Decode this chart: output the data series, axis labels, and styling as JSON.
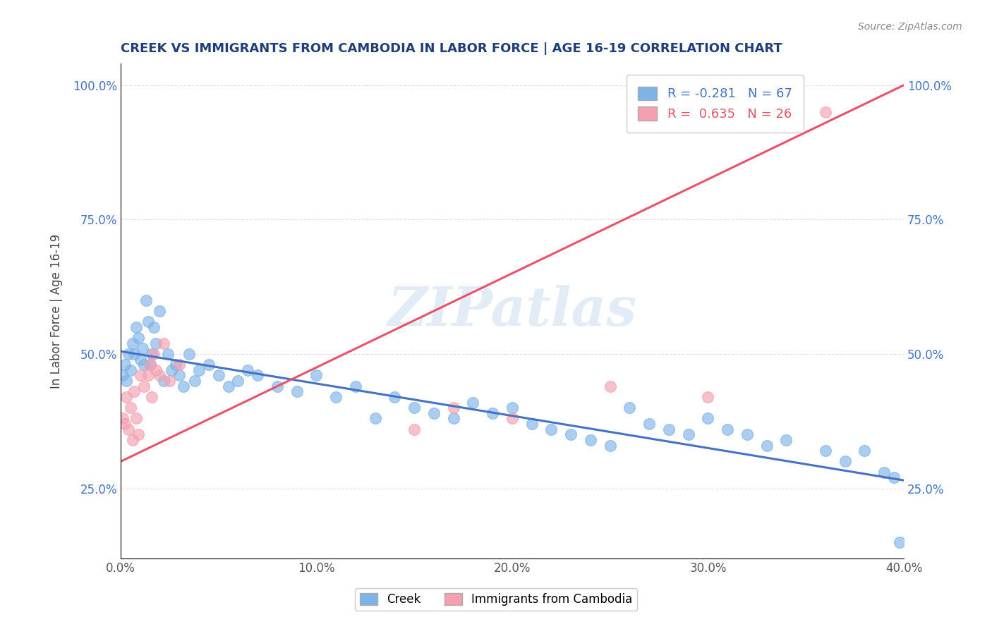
{
  "title": "CREEK VS IMMIGRANTS FROM CAMBODIA IN LABOR FORCE | AGE 16-19 CORRELATION CHART",
  "source": "Source: ZipAtlas.com",
  "ylabel": "In Labor Force | Age 16-19",
  "xlim": [
    0.0,
    0.4
  ],
  "ylim": [
    0.12,
    1.04
  ],
  "xticks": [
    0.0,
    0.05,
    0.1,
    0.15,
    0.2,
    0.25,
    0.3,
    0.35,
    0.4
  ],
  "xticklabels": [
    "0.0%",
    "",
    "10.0%",
    "",
    "20.0%",
    "",
    "30.0%",
    "",
    "40.0%"
  ],
  "yticks": [
    0.25,
    0.5,
    0.75,
    1.0
  ],
  "yticklabels": [
    "25.0%",
    "50.0%",
    "75.0%",
    "100.0%"
  ],
  "creek_color": "#7EB3E8",
  "cambodia_color": "#F4A0B0",
  "creek_trend_color": "#4472C4",
  "cambodia_trend_color": "#E8536A",
  "legend_creek_label": "Creek",
  "legend_cambodia_label": "Immigrants from Cambodia",
  "R_creek": -0.281,
  "N_creek": 67,
  "R_cambodia": 0.635,
  "N_cambodia": 26,
  "creek_x": [
    0.001,
    0.002,
    0.003,
    0.004,
    0.005,
    0.006,
    0.007,
    0.008,
    0.009,
    0.01,
    0.011,
    0.012,
    0.013,
    0.014,
    0.015,
    0.016,
    0.017,
    0.018,
    0.02,
    0.022,
    0.024,
    0.026,
    0.028,
    0.03,
    0.032,
    0.035,
    0.038,
    0.04,
    0.045,
    0.05,
    0.055,
    0.06,
    0.065,
    0.07,
    0.08,
    0.09,
    0.1,
    0.11,
    0.12,
    0.13,
    0.14,
    0.15,
    0.16,
    0.17,
    0.18,
    0.19,
    0.2,
    0.21,
    0.22,
    0.23,
    0.24,
    0.25,
    0.26,
    0.27,
    0.28,
    0.29,
    0.3,
    0.31,
    0.32,
    0.33,
    0.34,
    0.36,
    0.37,
    0.38,
    0.39,
    0.395,
    0.398
  ],
  "creek_y": [
    0.46,
    0.48,
    0.45,
    0.5,
    0.47,
    0.52,
    0.5,
    0.55,
    0.53,
    0.49,
    0.51,
    0.48,
    0.6,
    0.56,
    0.48,
    0.5,
    0.55,
    0.52,
    0.58,
    0.45,
    0.5,
    0.47,
    0.48,
    0.46,
    0.44,
    0.5,
    0.45,
    0.47,
    0.48,
    0.46,
    0.44,
    0.45,
    0.47,
    0.46,
    0.44,
    0.43,
    0.46,
    0.42,
    0.44,
    0.38,
    0.42,
    0.4,
    0.39,
    0.38,
    0.41,
    0.39,
    0.4,
    0.37,
    0.36,
    0.35,
    0.34,
    0.33,
    0.4,
    0.37,
    0.36,
    0.35,
    0.38,
    0.36,
    0.35,
    0.33,
    0.34,
    0.32,
    0.3,
    0.32,
    0.28,
    0.27,
    0.15
  ],
  "cambodia_x": [
    0.001,
    0.002,
    0.003,
    0.004,
    0.005,
    0.006,
    0.007,
    0.008,
    0.009,
    0.01,
    0.012,
    0.014,
    0.015,
    0.016,
    0.017,
    0.018,
    0.02,
    0.022,
    0.025,
    0.03,
    0.15,
    0.17,
    0.2,
    0.25,
    0.3,
    0.36
  ],
  "cambodia_y": [
    0.38,
    0.37,
    0.42,
    0.36,
    0.4,
    0.34,
    0.43,
    0.38,
    0.35,
    0.46,
    0.44,
    0.46,
    0.48,
    0.42,
    0.5,
    0.47,
    0.46,
    0.52,
    0.45,
    0.48,
    0.36,
    0.4,
    0.38,
    0.44,
    0.42,
    0.95
  ],
  "creek_trend_x": [
    0.0,
    0.4
  ],
  "creek_trend_y": [
    0.505,
    0.265
  ],
  "cambodia_trend_x": [
    0.0,
    0.4
  ],
  "cambodia_trend_y": [
    0.3,
    1.0
  ],
  "watermark_text": "ZIPatlas",
  "background_color": "#FFFFFF",
  "grid_color": "#DDDDDD",
  "title_color": "#1F3E7A",
  "source_color": "#888888",
  "ylabel_color": "#444444",
  "tick_color": "#4472C4"
}
